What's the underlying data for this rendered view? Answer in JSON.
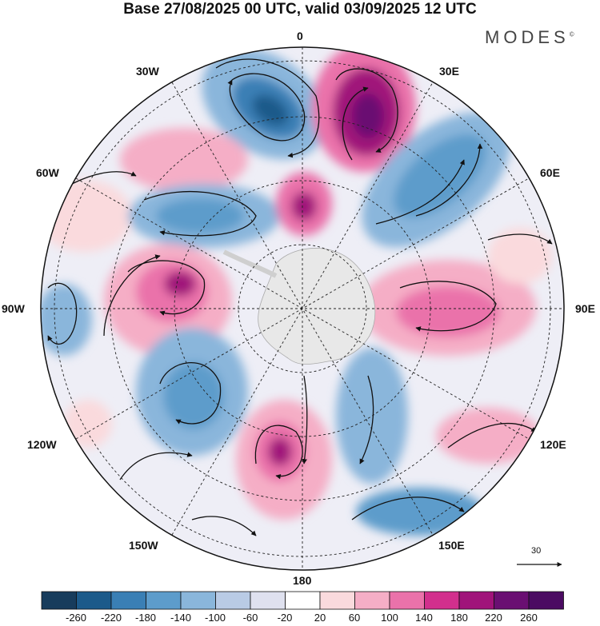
{
  "title": "Base 27/08/2025 00 UTC, valid 03/09/2025 12 UTC",
  "brand": "MODES",
  "brand_mark": "©",
  "longitude_labels": {
    "n": "0",
    "nne": "30E",
    "ene": "60E",
    "e": "90E",
    "ese": "120E",
    "sse": "150E",
    "s": "180",
    "ssw": "150W",
    "wsw": "120W",
    "w": "90W",
    "wnw": "60W",
    "nnw": "30W"
  },
  "reference_vector": "30",
  "colorbar": {
    "labels": [
      "-260",
      "-220",
      "-180",
      "-140",
      "-100",
      "-60",
      "-20",
      "20",
      "60",
      "100",
      "140",
      "180",
      "220",
      "260"
    ],
    "colors": [
      "#173c5c",
      "#1c5a8a",
      "#3a7fb5",
      "#5d9ccb",
      "#8ab6db",
      "#b9cbe5",
      "#dfe1ef",
      "#ffffff",
      "#fadadd",
      "#f5aec6",
      "#ea72aa",
      "#d22f8d",
      "#a0137a",
      "#6a0f72",
      "#4b0b62"
    ]
  }
}
